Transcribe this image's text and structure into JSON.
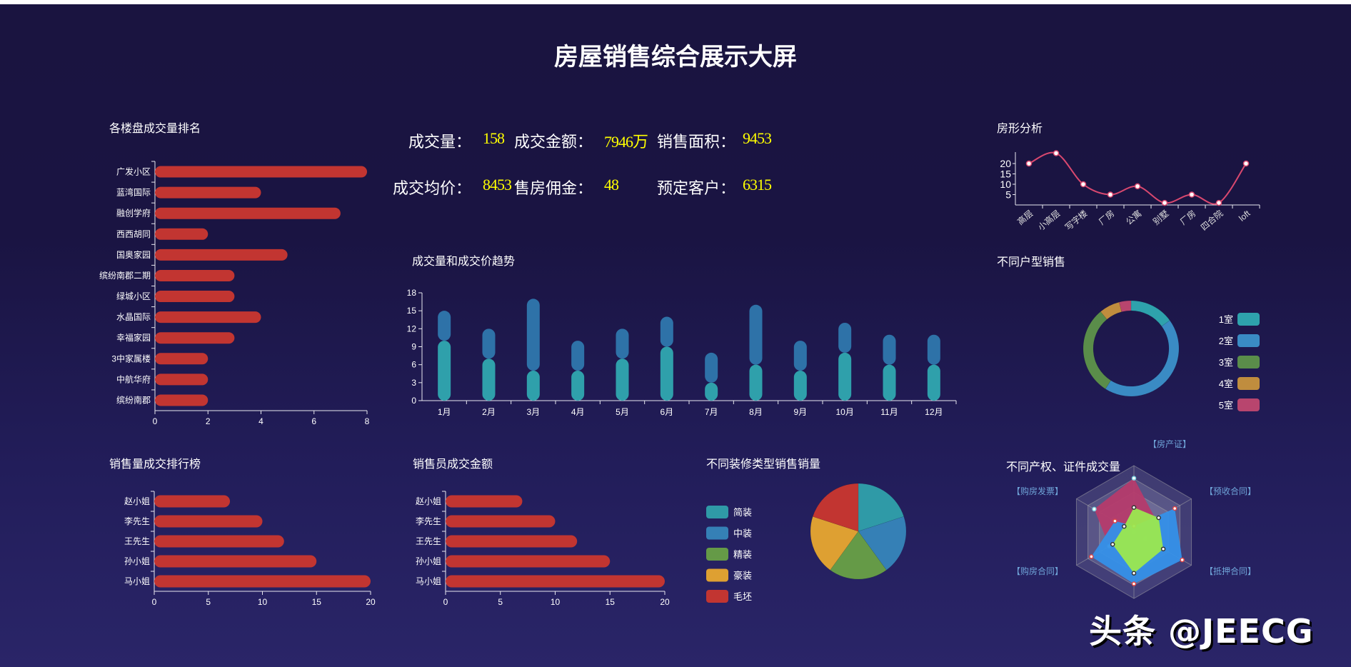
{
  "header": {
    "title": "房屋销售综合展示大屏"
  },
  "kpis": [
    {
      "label": "成交量：",
      "value": "158"
    },
    {
      "label": "成交金额：",
      "value": "7946万"
    },
    {
      "label": "销售面积：",
      "value": "9453"
    },
    {
      "label": "成交均价：",
      "value": "8453"
    },
    {
      "label": "售房佣金：",
      "value": "48"
    },
    {
      "label": "预定客户：",
      "value": "6315"
    }
  ],
  "watermark": "头条 @JEECG",
  "chart_data": [
    {
      "id": "project-ranking",
      "type": "bar",
      "orientation": "horizontal",
      "title": "各楼盘成交量排名",
      "categories": [
        "广发小区",
        "蓝湾国际",
        "融创学府",
        "西西胡同",
        "国奥家园",
        "缤纷南郡二期",
        "绿城小区",
        "水晶国际",
        "幸福家园",
        "3中家属楼",
        "中航华府",
        "缤纷南郡"
      ],
      "values": [
        8,
        4,
        7,
        2,
        5,
        3,
        3,
        4,
        3,
        2,
        2,
        2
      ],
      "xlim": [
        0,
        8
      ],
      "xticks": [
        "0",
        "2",
        "4",
        "6",
        "8"
      ],
      "color": "#c23531"
    },
    {
      "id": "trend",
      "type": "bar",
      "stacked": true,
      "title": "成交量和成交价趋势",
      "categories": [
        "1月",
        "2月",
        "3月",
        "4月",
        "5月",
        "6月",
        "7月",
        "8月",
        "9月",
        "10月",
        "11月",
        "12月"
      ],
      "series": [
        {
          "values": [
            10,
            7,
            5,
            5,
            7,
            9,
            3,
            6,
            5,
            8,
            6,
            6
          ],
          "color": "#2fa0ab"
        },
        {
          "values": [
            5,
            5,
            12,
            5,
            5,
            5,
            5,
            10,
            5,
            5,
            5,
            5
          ],
          "color": "#2e72a8"
        }
      ],
      "ylim": [
        0,
        18
      ],
      "yticks": [
        "0",
        "3",
        "6",
        "9",
        "12",
        "15",
        "18"
      ]
    },
    {
      "id": "house-type",
      "type": "line",
      "smooth": true,
      "title": "房形分析",
      "categories": [
        "高层",
        "小高层",
        "写字楼",
        "厂房",
        "公寓",
        "别墅",
        "厂房",
        "四合院",
        "loft"
      ],
      "values": [
        20,
        25,
        10,
        5,
        9,
        1,
        5,
        1,
        20
      ],
      "yticks": [
        "5",
        "10",
        "15",
        "20"
      ],
      "color": "#d9486f"
    },
    {
      "id": "room-type",
      "type": "pie",
      "donut": true,
      "title": "不同户型销售",
      "labels": [
        "1室",
        "2室",
        "3室",
        "4室",
        "5室"
      ],
      "values": [
        15,
        44,
        30,
        7,
        4
      ],
      "colors": [
        "#2ea2ac",
        "#3a8bc4",
        "#5a8d4a",
        "#c08d3e",
        "#b8456e"
      ]
    },
    {
      "id": "sales-volume-ranking",
      "type": "bar",
      "orientation": "horizontal",
      "title": "销售量成交排行榜",
      "categories": [
        "赵小姐",
        "李先生",
        "王先生",
        "孙小姐",
        "马小姐"
      ],
      "values": [
        7,
        10,
        12,
        15,
        20
      ],
      "xlim": [
        0,
        20
      ],
      "xticks": [
        "0",
        "5",
        "10",
        "15",
        "20"
      ],
      "color": "#c23531"
    },
    {
      "id": "salesperson-amount",
      "type": "bar",
      "orientation": "horizontal",
      "title": "销售员成交金额",
      "categories": [
        "赵小姐",
        "李先生",
        "王先生",
        "孙小姐",
        "马小姐"
      ],
      "values": [
        7,
        10,
        12,
        15,
        20
      ],
      "xlim": [
        0,
        20
      ],
      "xticks": [
        "0",
        "5",
        "10",
        "15",
        "20"
      ],
      "color": "#c23531"
    },
    {
      "id": "decoration",
      "type": "pie",
      "title": "不同装修类型销售销量",
      "labels": [
        "简装",
        "中装",
        "精装",
        "豪装",
        "毛坯"
      ],
      "values": [
        20,
        20,
        20,
        20,
        20
      ],
      "colors": [
        "#2f9aa7",
        "#3580b6",
        "#659a47",
        "#dea032",
        "#c23531"
      ]
    },
    {
      "id": "property-rights",
      "type": "radar",
      "title": "不同产权、证件成交量",
      "indicators": [
        "【房产证】",
        "【预收合同】",
        "【抵押合同】",
        "",
        "【购房合同】",
        "【购房发票】"
      ],
      "max": 100,
      "series": [
        {
          "values": [
            81,
            38,
            20,
            0,
            43,
            69
          ],
          "color": "#b53b6b",
          "marker": "#7fd3e0"
        },
        {
          "values": [
            9,
            71,
            84,
            78,
            74,
            33
          ],
          "color": "#3590e8",
          "marker": "#e04545"
        },
        {
          "values": [
            37,
            43,
            51,
            62,
            37,
            17
          ],
          "color": "#9be84f",
          "marker": "#333"
        }
      ]
    }
  ]
}
